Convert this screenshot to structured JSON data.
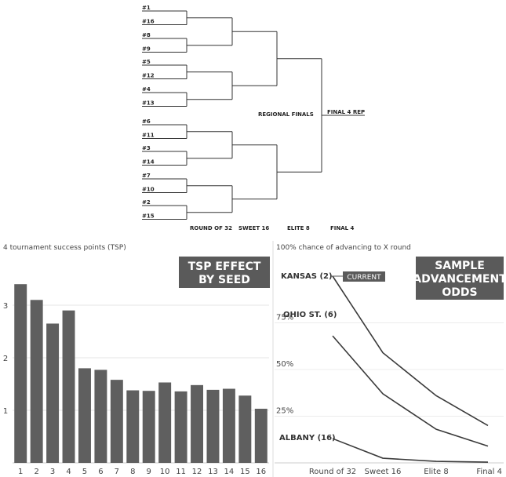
{
  "bracket": {
    "seeds_top": [
      "#1",
      "#16",
      "#8",
      "#9",
      "#5",
      "#12",
      "#4",
      "#13"
    ],
    "seeds_bottom": [
      "#6",
      "#11",
      "#3",
      "#14",
      "#7",
      "#10",
      "#2",
      "#15"
    ],
    "regional_finals_label": "REGIONAL FINALS",
    "final4_label": "FINAL 4 REP",
    "round_labels": [
      "ROUND OF 32",
      "SWEET 16",
      "ELITE 8",
      "FINAL 4"
    ]
  },
  "chart_data": [
    {
      "type": "bar",
      "title": "TSP EFFECT BY SEED",
      "title_lines": [
        "TSP EFFECT",
        "BY SEED"
      ],
      "ylabel": "4 tournament success points (TSP)",
      "categories": [
        "1",
        "2",
        "3",
        "4",
        "5",
        "6",
        "7",
        "8",
        "9",
        "10",
        "11",
        "12",
        "13",
        "14",
        "15",
        "16"
      ],
      "values": [
        3.4,
        3.1,
        2.65,
        2.9,
        1.8,
        1.77,
        1.58,
        1.38,
        1.37,
        1.53,
        1.36,
        1.48,
        1.39,
        1.41,
        1.28,
        1.03
      ],
      "ylim": [
        0,
        4
      ],
      "yticks": [
        1,
        2,
        3
      ],
      "ytick_labels": [
        "1",
        "2",
        "3"
      ],
      "grid": true,
      "bar_color": "#5f5f5f"
    },
    {
      "type": "line",
      "title": "SAMPLE ADVANCEMENT ODDS",
      "title_lines": [
        "SAMPLE",
        "ADVANCEMENT",
        "ODDS"
      ],
      "ylabel": "100% chance of advancing to X round",
      "categories": [
        "Round of 32",
        "Sweet 16",
        "Elite 8",
        "Final 4"
      ],
      "series": [
        {
          "name": "KANSAS (2)",
          "values": [
            100,
            59,
            36,
            20
          ]
        },
        {
          "name": "OHIO ST. (6)",
          "values": [
            68,
            37,
            18,
            9
          ]
        },
        {
          "name": "ALBANY (16)",
          "values": [
            13,
            2.5,
            0.8,
            0.4
          ]
        }
      ],
      "ylim": [
        0,
        100
      ],
      "yticks": [
        25,
        50,
        75
      ],
      "ytick_labels": [
        "25%",
        "50%",
        "75%"
      ],
      "annotation": "CURRENT",
      "grid": true,
      "line_color": "#3a3a3a"
    }
  ]
}
